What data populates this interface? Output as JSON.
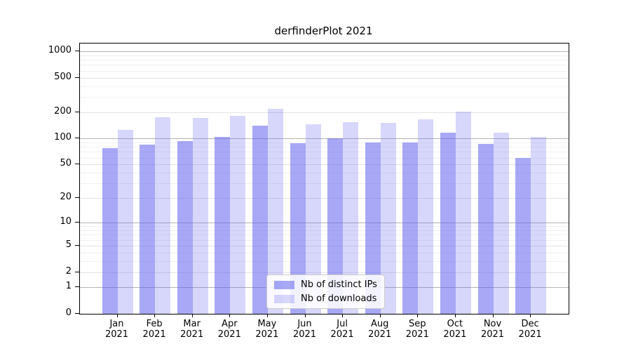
{
  "chart_data": {
    "type": "bar",
    "title": "derfinderPlot 2021",
    "categories": [
      "Jan",
      "Feb",
      "Mar",
      "Apr",
      "May",
      "Jun",
      "Jul",
      "Aug",
      "Sep",
      "Oct",
      "Nov",
      "Dec"
    ],
    "x_year_label": "2021",
    "series": [
      {
        "name": "Nb of distinct IPs",
        "color_hex": "#6161ef",
        "rgb": "97,97,239",
        "alpha": 0.55,
        "values": [
          78,
          85,
          93,
          105,
          141,
          88,
          100,
          90,
          90,
          117,
          87,
          60
        ]
      },
      {
        "name": "Nb of downloads",
        "color_hex": "#6161ef",
        "rgb": "97,97,239",
        "alpha": 0.25,
        "values": [
          125,
          176,
          174,
          184,
          220,
          147,
          155,
          152,
          165,
          202,
          116,
          104
        ]
      }
    ],
    "yscale": "log10(1+x)",
    "yticks": [
      0,
      1,
      2,
      5,
      10,
      20,
      50,
      100,
      200,
      500,
      1000
    ],
    "yticks_minor": [
      3,
      4,
      6,
      7,
      8,
      9,
      30,
      40,
      60,
      70,
      80,
      90,
      300,
      400,
      600,
      700,
      800,
      900
    ],
    "ylim": [
      0,
      1200
    ],
    "grid": "horizontal",
    "gridline_dark_at": [
      1,
      10,
      100,
      1000
    ],
    "legend": {
      "position": "inside-bottom-center",
      "entries": [
        "Nb of distinct IPs",
        "Nb of downloads"
      ]
    }
  }
}
